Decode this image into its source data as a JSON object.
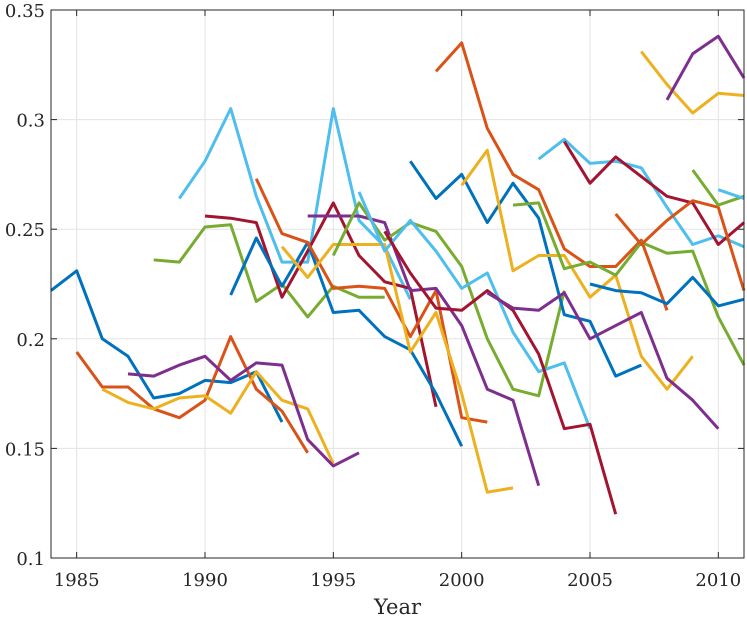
{
  "chart_data": {
    "type": "line",
    "title": "",
    "xlabel": "Year",
    "ylabel": "",
    "xlim": [
      1984,
      2011
    ],
    "ylim": [
      0.1,
      0.35
    ],
    "grid": true,
    "legend": "none",
    "xticks": [
      1985,
      1990,
      1995,
      2000,
      2005,
      2010
    ],
    "xtick_labels": [
      "1985",
      "1990",
      "1995",
      "2000",
      "2005",
      "2010"
    ],
    "yticks": [
      0.1,
      0.15,
      0.2,
      0.25,
      0.3,
      0.35
    ],
    "ytick_labels": [
      "0.1",
      "0.15",
      "0.2",
      "0.25",
      "0.3",
      "0.35"
    ],
    "palette": [
      "#0072BD",
      "#D95319",
      "#EDB120",
      "#7E2F8E",
      "#77AC30",
      "#4DBEEE",
      "#A2142F"
    ],
    "series": [
      {
        "name": "blue-1",
        "color": "#0072BD",
        "x": [
          1984,
          1985,
          1986,
          1987,
          1988,
          1989,
          1990,
          1991,
          1992,
          1993
        ],
        "y": [
          0.222,
          0.231,
          0.2,
          0.192,
          0.173,
          0.175,
          0.181,
          0.18,
          0.185,
          0.162
        ]
      },
      {
        "name": "orange-1",
        "color": "#D95319",
        "x": [
          1985,
          1986,
          1987,
          1988,
          1989,
          1990,
          1991,
          1992,
          1993,
          1994
        ],
        "y": [
          0.194,
          0.178,
          0.178,
          0.168,
          0.164,
          0.172,
          0.201,
          0.177,
          0.167,
          0.148
        ]
      },
      {
        "name": "yellow-1",
        "color": "#EDB120",
        "x": [
          1986,
          1987,
          1988,
          1989,
          1990,
          1991,
          1992,
          1993,
          1994,
          1995
        ],
        "y": [
          0.177,
          0.171,
          0.168,
          0.173,
          0.174,
          0.166,
          0.185,
          0.172,
          0.168,
          0.143
        ]
      },
      {
        "name": "purple-1",
        "color": "#7E2F8E",
        "x": [
          1987,
          1988,
          1989,
          1990,
          1991,
          1992,
          1993,
          1994,
          1995,
          1996
        ],
        "y": [
          0.184,
          0.183,
          0.188,
          0.192,
          0.181,
          0.189,
          0.188,
          0.154,
          0.142,
          0.148
        ]
      },
      {
        "name": "green-1",
        "color": "#77AC30",
        "x": [
          1988,
          1989,
          1990,
          1991,
          1992,
          1993,
          1994,
          1995,
          1996,
          1997
        ],
        "y": [
          0.236,
          0.235,
          0.251,
          0.252,
          0.217,
          0.225,
          0.21,
          0.224,
          0.219,
          0.219
        ]
      },
      {
        "name": "lightblue-1",
        "color": "#4DBEEE",
        "x": [
          1989,
          1990,
          1991,
          1992,
          1993,
          1994,
          1995,
          1996,
          1997,
          1998
        ],
        "y": [
          0.264,
          0.281,
          0.305,
          0.265,
          0.235,
          0.235,
          0.305,
          0.254,
          0.242,
          0.218
        ]
      },
      {
        "name": "red-1",
        "color": "#A2142F",
        "x": [
          1990,
          1991,
          1992,
          1993,
          1994,
          1995,
          1996,
          1997,
          1998,
          1999
        ],
        "y": [
          0.256,
          0.255,
          0.253,
          0.219,
          0.24,
          0.262,
          0.238,
          0.226,
          0.223,
          0.169
        ]
      },
      {
        "name": "blue-2",
        "color": "#0072BD",
        "x": [
          1991,
          1992,
          1993,
          1994,
          1995,
          1996,
          1997,
          1998,
          1999,
          2000
        ],
        "y": [
          0.22,
          0.246,
          0.224,
          0.244,
          0.212,
          0.213,
          0.201,
          0.195,
          0.175,
          0.151
        ]
      },
      {
        "name": "orange-2",
        "color": "#D95319",
        "x": [
          1992,
          1993,
          1994,
          1995,
          1996,
          1997,
          1998,
          1999,
          2000,
          2001
        ],
        "y": [
          0.273,
          0.248,
          0.244,
          0.223,
          0.224,
          0.223,
          0.201,
          0.222,
          0.164,
          0.162
        ]
      },
      {
        "name": "yellow-2",
        "color": "#EDB120",
        "x": [
          1993,
          1994,
          1995,
          1996,
          1997,
          1998,
          1999,
          2000,
          2001,
          2002
        ],
        "y": [
          0.242,
          0.228,
          0.243,
          0.243,
          0.243,
          0.194,
          0.212,
          0.175,
          0.13,
          0.132
        ]
      },
      {
        "name": "purple-2",
        "color": "#7E2F8E",
        "x": [
          1994,
          1995,
          1996,
          1997,
          1998,
          1999,
          2000,
          2001,
          2002,
          2003
        ],
        "y": [
          0.256,
          0.256,
          0.256,
          0.253,
          0.222,
          0.223,
          0.206,
          0.177,
          0.172,
          0.133
        ]
      },
      {
        "name": "green-2",
        "color": "#77AC30",
        "x": [
          1995,
          1996,
          1997,
          1998,
          1999,
          2000,
          2001,
          2002,
          2003,
          2004
        ],
        "y": [
          0.238,
          0.262,
          0.245,
          0.253,
          0.249,
          0.233,
          0.2,
          0.177,
          0.174,
          0.222
        ]
      },
      {
        "name": "lightblue-2",
        "color": "#4DBEEE",
        "x": [
          1996,
          1997,
          1998,
          1999,
          2000,
          2001,
          2002,
          2003,
          2004,
          2005
        ],
        "y": [
          0.267,
          0.24,
          0.254,
          0.24,
          0.223,
          0.23,
          0.203,
          0.185,
          0.189,
          0.159
        ]
      },
      {
        "name": "red-2",
        "color": "#A2142F",
        "x": [
          1997,
          1998,
          1999,
          2000,
          2001,
          2002,
          2003,
          2004,
          2005,
          2006
        ],
        "y": [
          0.249,
          0.23,
          0.214,
          0.213,
          0.222,
          0.213,
          0.193,
          0.159,
          0.161,
          0.12
        ]
      },
      {
        "name": "blue-3",
        "color": "#0072BD",
        "x": [
          1998,
          1999,
          2000,
          2001,
          2002,
          2003,
          2004,
          2005,
          2006,
          2007
        ],
        "y": [
          0.281,
          0.264,
          0.275,
          0.253,
          0.271,
          0.255,
          0.211,
          0.208,
          0.183,
          0.188
        ]
      },
      {
        "name": "orange-3",
        "color": "#D95319",
        "x": [
          1999,
          2000,
          2001,
          2002,
          2003,
          2004,
          2005,
          2006,
          2007,
          2008
        ],
        "y": [
          0.322,
          0.335,
          0.296,
          0.275,
          0.268,
          0.241,
          0.233,
          0.233,
          0.245,
          0.213
        ]
      },
      {
        "name": "yellow-3",
        "color": "#EDB120",
        "x": [
          2000,
          2001,
          2002,
          2003,
          2004,
          2005,
          2006,
          2007,
          2008,
          2009
        ],
        "y": [
          0.27,
          0.286,
          0.231,
          0.238,
          0.238,
          0.219,
          0.229,
          0.192,
          0.177,
          0.192
        ]
      },
      {
        "name": "purple-3",
        "color": "#7E2F8E",
        "x": [
          2001,
          2002,
          2003,
          2004,
          2005,
          2006,
          2007,
          2008,
          2009,
          2010
        ],
        "y": [
          0.221,
          0.214,
          0.213,
          0.221,
          0.2,
          0.206,
          0.212,
          0.182,
          0.172,
          0.159
        ]
      },
      {
        "name": "green-3",
        "color": "#77AC30",
        "x": [
          2002,
          2003,
          2004,
          2005,
          2006,
          2007,
          2008,
          2009,
          2010,
          2011
        ],
        "y": [
          0.261,
          0.262,
          0.232,
          0.235,
          0.229,
          0.244,
          0.239,
          0.24,
          0.21,
          0.188
        ]
      },
      {
        "name": "lightblue-3",
        "color": "#4DBEEE",
        "x": [
          2003,
          2004,
          2005,
          2006,
          2007,
          2008,
          2009,
          2010,
          2011
        ],
        "y": [
          0.282,
          0.291,
          0.28,
          0.281,
          0.278,
          0.26,
          0.243,
          0.247,
          0.242
        ]
      },
      {
        "name": "red-3",
        "color": "#A2142F",
        "x": [
          2004,
          2005,
          2006,
          2007,
          2008,
          2009,
          2010,
          2011
        ],
        "y": [
          0.29,
          0.271,
          0.283,
          0.274,
          0.265,
          0.262,
          0.243,
          0.253
        ]
      },
      {
        "name": "blue-4",
        "color": "#0072BD",
        "x": [
          2005,
          2006,
          2007,
          2008,
          2009,
          2010,
          2011
        ],
        "y": [
          0.225,
          0.222,
          0.221,
          0.216,
          0.228,
          0.215,
          0.218
        ]
      },
      {
        "name": "orange-4",
        "color": "#D95319",
        "x": [
          2006,
          2007,
          2008,
          2009,
          2010,
          2011
        ],
        "y": [
          0.257,
          0.243,
          0.254,
          0.263,
          0.26,
          0.222
        ]
      },
      {
        "name": "yellow-4",
        "color": "#EDB120",
        "x": [
          2007,
          2008,
          2009,
          2010,
          2011
        ],
        "y": [
          0.331,
          0.316,
          0.303,
          0.312,
          0.311
        ]
      },
      {
        "name": "purple-4",
        "color": "#7E2F8E",
        "x": [
          2008,
          2009,
          2010,
          2011
        ],
        "y": [
          0.309,
          0.33,
          0.338,
          0.319
        ]
      },
      {
        "name": "green-4",
        "color": "#77AC30",
        "x": [
          2009,
          2010,
          2011
        ],
        "y": [
          0.277,
          0.261,
          0.265
        ]
      },
      {
        "name": "lightblue-4",
        "color": "#4DBEEE",
        "x": [
          2010,
          2011
        ],
        "y": [
          0.268,
          0.264
        ]
      }
    ]
  }
}
